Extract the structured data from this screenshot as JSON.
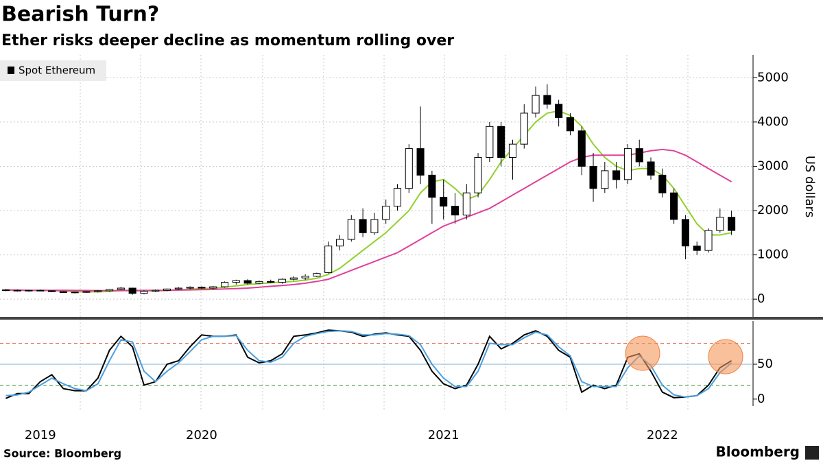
{
  "title": "Bearish Turn?",
  "subtitle": "Ether risks deeper decline as momentum rolling over",
  "source": "Source: Bloomberg",
  "logo": "Bloomberg",
  "chart_data": [
    {
      "type": "candlestick",
      "legend": "Spot Ethereum",
      "ylabel": "US dollars",
      "up_color": "#ffffff",
      "down_color": "#000000",
      "categories": [
        null,
        null,
        null,
        "2019",
        null,
        null,
        null,
        null,
        null,
        null,
        null,
        null,
        null,
        null,
        null,
        null,
        null,
        "2020",
        null,
        null,
        null,
        null,
        null,
        null,
        null,
        null,
        null,
        null,
        null,
        null,
        null,
        null,
        null,
        null,
        null,
        null,
        null,
        null,
        "2021",
        null,
        null,
        null,
        null,
        null,
        null,
        null,
        null,
        null,
        null,
        null,
        null,
        null,
        null,
        null,
        null,
        null,
        null,
        "2022",
        null,
        null,
        null,
        null,
        null,
        null
      ],
      "open": [
        210,
        200,
        190,
        200,
        190,
        170,
        150,
        160,
        170,
        190,
        220,
        250,
        130,
        180,
        200,
        230,
        250,
        270,
        250,
        280,
        380,
        420,
        360,
        400,
        380,
        450,
        480,
        520,
        600,
        1200,
        1350,
        1800,
        1500,
        1800,
        2100,
        2500,
        3400,
        2800,
        2300,
        2100,
        1900,
        2400,
        3200,
        3900,
        3200,
        3500,
        4200,
        4600,
        4400,
        4100,
        3800,
        3000,
        2500,
        2900,
        2700,
        3400,
        3100,
        2800,
        2400,
        1800,
        1200,
        1100,
        1550,
        1850
      ],
      "high": [
        230,
        220,
        210,
        215,
        200,
        180,
        170,
        180,
        200,
        230,
        280,
        260,
        200,
        220,
        240,
        270,
        290,
        290,
        300,
        400,
        440,
        450,
        420,
        440,
        470,
        520,
        560,
        600,
        1300,
        1450,
        1900,
        2050,
        1950,
        2250,
        2600,
        3500,
        4350,
        2900,
        2700,
        2400,
        2600,
        3300,
        4000,
        4000,
        3600,
        4400,
        4800,
        4850,
        4500,
        4200,
        3900,
        3300,
        3100,
        3100,
        3500,
        3600,
        3200,
        2950,
        2500,
        1900,
        1300,
        1600,
        2050,
        2000
      ],
      "low": [
        180,
        170,
        170,
        180,
        160,
        140,
        130,
        140,
        150,
        170,
        200,
        100,
        110,
        160,
        180,
        210,
        220,
        230,
        220,
        260,
        330,
        330,
        340,
        360,
        350,
        420,
        430,
        500,
        580,
        1100,
        1300,
        1400,
        1450,
        1700,
        2000,
        2400,
        2600,
        1700,
        1800,
        1700,
        1800,
        2300,
        3100,
        3000,
        2700,
        3400,
        4100,
        4300,
        3900,
        3700,
        2800,
        2200,
        2400,
        2500,
        2600,
        3000,
        2700,
        2300,
        1700,
        900,
        1000,
        1050,
        1500,
        1450
      ],
      "close": [
        200,
        190,
        200,
        190,
        170,
        150,
        160,
        170,
        190,
        220,
        250,
        130,
        180,
        200,
        230,
        250,
        270,
        250,
        280,
        380,
        420,
        360,
        400,
        380,
        450,
        480,
        520,
        580,
        1200,
        1350,
        1800,
        1500,
        1800,
        2100,
        2500,
        3400,
        2800,
        2300,
        2100,
        1900,
        2400,
        3200,
        3900,
        3200,
        3500,
        4200,
        4600,
        4400,
        4100,
        3800,
        3000,
        2500,
        2900,
        2700,
        3400,
        3100,
        2800,
        2400,
        1800,
        1200,
        1100,
        1550,
        1850,
        1550
      ],
      "overlays": [
        {
          "color": "#8fd12c",
          "values": [
            200,
            200,
            195,
            195,
            190,
            180,
            170,
            165,
            165,
            175,
            190,
            190,
            185,
            185,
            195,
            210,
            225,
            240,
            250,
            270,
            300,
            330,
            350,
            370,
            385,
            400,
            430,
            470,
            560,
            700,
            900,
            1100,
            1300,
            1500,
            1750,
            2000,
            2400,
            2650,
            2700,
            2500,
            2250,
            2350,
            2700,
            3100,
            3400,
            3700,
            4000,
            4200,
            4250,
            4150,
            3900,
            3500,
            3200,
            3000,
            2900,
            2950,
            2950,
            2800,
            2500,
            2100,
            1700,
            1450,
            1450,
            1500
          ]
        },
        {
          "color": "#e0409a",
          "values": [
            210,
            205,
            200,
            200,
            200,
            200,
            198,
            196,
            195,
            195,
            196,
            198,
            198,
            199,
            200,
            205,
            210,
            215,
            220,
            230,
            240,
            250,
            270,
            290,
            310,
            330,
            360,
            400,
            450,
            550,
            650,
            750,
            850,
            950,
            1050,
            1200,
            1350,
            1500,
            1650,
            1750,
            1850,
            1950,
            2050,
            2200,
            2350,
            2500,
            2650,
            2800,
            2950,
            3100,
            3200,
            3250,
            3250,
            3250,
            3250,
            3300,
            3350,
            3380,
            3350,
            3250,
            3100,
            2950,
            2800,
            2650
          ]
        }
      ],
      "ylim": [
        -400,
        5500
      ],
      "yticks": [
        0,
        1000,
        2000,
        3000,
        4000,
        5000
      ],
      "grid": true
    },
    {
      "type": "line",
      "series": [
        {
          "color": "#000000",
          "values": [
            1,
            8,
            8,
            25,
            35,
            15,
            12,
            12,
            30,
            70,
            90,
            75,
            20,
            25,
            50,
            55,
            75,
            92,
            90,
            90,
            92,
            60,
            52,
            55,
            65,
            90,
            92,
            95,
            99,
            98,
            96,
            90,
            93,
            95,
            92,
            90,
            70,
            40,
            22,
            15,
            20,
            50,
            90,
            72,
            80,
            92,
            98,
            90,
            70,
            60,
            10,
            20,
            15,
            20,
            60,
            65,
            40,
            10,
            2,
            3,
            5,
            20,
            45,
            55
          ]
        },
        {
          "color": "#4a9fe0",
          "values": [
            5,
            6,
            10,
            20,
            30,
            22,
            15,
            12,
            22,
            55,
            85,
            82,
            40,
            25,
            40,
            52,
            68,
            85,
            90,
            90,
            91,
            70,
            55,
            53,
            60,
            80,
            90,
            94,
            97,
            98,
            97,
            92,
            92,
            94,
            93,
            91,
            78,
            50,
            30,
            18,
            18,
            40,
            80,
            78,
            78,
            88,
            96,
            92,
            75,
            62,
            25,
            18,
            18,
            18,
            45,
            62,
            48,
            20,
            6,
            3,
            5,
            15,
            38,
            52
          ]
        }
      ],
      "reference_lines": [
        {
          "value": 80,
          "color": "#e07050",
          "dash": true
        },
        {
          "value": 50,
          "color": "#7fb0d8",
          "dash": false
        },
        {
          "value": 20,
          "color": "#2e8b2e",
          "dash": true
        }
      ],
      "ylim": [
        -10,
        110
      ],
      "yticks": [
        0,
        50
      ]
    }
  ]
}
